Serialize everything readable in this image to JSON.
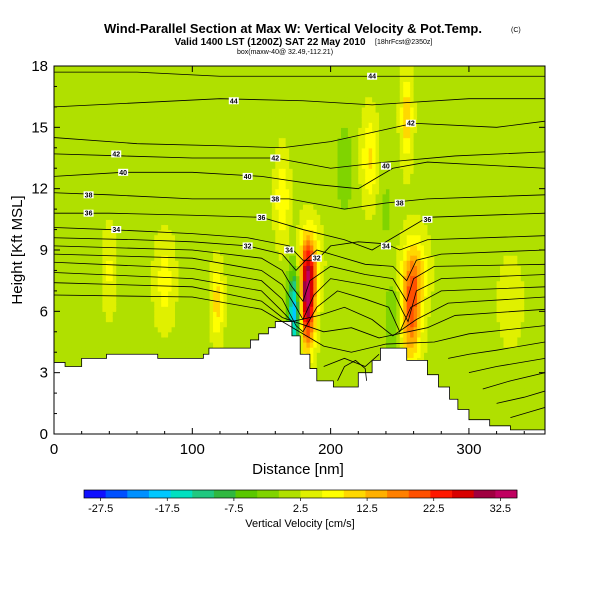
{
  "chart_data": {
    "type": "heatmap",
    "title": "Wind-Parallel Section at Max W: Vertical Velocity & Pot.Temp.",
    "title_mark": "(C)",
    "subtitle": "Valid 1400 LST (1200Z) SAT 22 May 2010",
    "subtitle_extra": "[18hrFcst@2350z]",
    "subtitle_small": "box(maxw-40@ 32.49,-112.21)",
    "xlabel": "Distance [nm]",
    "ylabel": "Height [Kft MSL]",
    "xlim": [
      0,
      355
    ],
    "ylim": [
      0,
      18
    ],
    "x_ticks": [
      0,
      100,
      200,
      300
    ],
    "y_ticks": [
      0,
      3,
      6,
      9,
      12,
      15,
      18
    ],
    "colorbar": {
      "title": "Vertical Velocity [cm/s]",
      "min": -30,
      "max": 35,
      "tick_labels": [
        "-27.5",
        "-17.5",
        "-7.5",
        "2.5",
        "12.5",
        "22.5",
        "32.5"
      ],
      "tick_values": [
        -27.5,
        -17.5,
        -7.5,
        2.5,
        12.5,
        22.5,
        32.5
      ],
      "colors": [
        "#1010ff",
        "#0050ff",
        "#0090ff",
        "#00c8ff",
        "#00e0c0",
        "#20c880",
        "#30b840",
        "#5ac800",
        "#80d400",
        "#b0e000",
        "#e0f000",
        "#ffff00",
        "#ffd800",
        "#ffb000",
        "#ff8000",
        "#ff5000",
        "#ff1800",
        "#d80000",
        "#a00040",
        "#c00060"
      ]
    },
    "background_value": 1.5,
    "terrain": [
      [
        0,
        3.5
      ],
      [
        8,
        3.5
      ],
      [
        8,
        3.3
      ],
      [
        20,
        3.3
      ],
      [
        20,
        3.7
      ],
      [
        38,
        3.7
      ],
      [
        38,
        3.9
      ],
      [
        75,
        3.9
      ],
      [
        75,
        3.7
      ],
      [
        108,
        3.7
      ],
      [
        108,
        3.9
      ],
      [
        112,
        3.9
      ],
      [
        112,
        4.2
      ],
      [
        142,
        4.2
      ],
      [
        142,
        4.6
      ],
      [
        148,
        4.6
      ],
      [
        148,
        4.9
      ],
      [
        155,
        4.9
      ],
      [
        155,
        5.2
      ],
      [
        160,
        5.2
      ],
      [
        160,
        5.5
      ],
      [
        172,
        5.5
      ],
      [
        172,
        4.8
      ],
      [
        178,
        4.8
      ],
      [
        178,
        3.9
      ],
      [
        185,
        3.9
      ],
      [
        185,
        3.2
      ],
      [
        190,
        3.2
      ],
      [
        190,
        2.6
      ],
      [
        202,
        2.6
      ],
      [
        202,
        2.3
      ],
      [
        220,
        2.3
      ],
      [
        220,
        3.0
      ],
      [
        230,
        3.0
      ],
      [
        230,
        3.6
      ],
      [
        236,
        3.6
      ],
      [
        236,
        4.2
      ],
      [
        255,
        4.2
      ],
      [
        255,
        3.6
      ],
      [
        270,
        3.6
      ],
      [
        270,
        2.9
      ],
      [
        278,
        2.9
      ],
      [
        278,
        2.3
      ],
      [
        286,
        2.3
      ],
      [
        286,
        1.7
      ],
      [
        292,
        1.7
      ],
      [
        292,
        1.2
      ],
      [
        300,
        1.2
      ],
      [
        300,
        0.7
      ],
      [
        315,
        0.7
      ],
      [
        315,
        0.4
      ],
      [
        330,
        0.4
      ],
      [
        330,
        0.2
      ],
      [
        355,
        0.2
      ]
    ],
    "velocity_features": [
      {
        "name": "updraft-main",
        "x": 183,
        "z": 6.5,
        "sx": 4,
        "sz": 1.6,
        "value": 30
      },
      {
        "name": "updraft-main-upper",
        "x": 185,
        "z": 8.5,
        "sx": 5,
        "sz": 1.2,
        "value": 12
      },
      {
        "name": "downdraft-main",
        "x": 174,
        "z": 6.0,
        "sx": 3.5,
        "sz": 1.5,
        "value": -22
      },
      {
        "name": "updraft-second",
        "x": 258,
        "z": 6.0,
        "sx": 5,
        "sz": 1.8,
        "value": 18
      },
      {
        "name": "updraft-second-upper",
        "x": 262,
        "z": 8.0,
        "sx": 6,
        "sz": 1.2,
        "value": 8
      },
      {
        "name": "downdraft-second",
        "x": 245,
        "z": 5.5,
        "sx": 4,
        "sz": 1.4,
        "value": -6
      },
      {
        "name": "updraft-west",
        "x": 118,
        "z": 6.5,
        "sx": 3,
        "sz": 1.2,
        "value": 10
      },
      {
        "name": "updraft-west-2",
        "x": 80,
        "z": 7.5,
        "sx": 5,
        "sz": 1.5,
        "value": 6
      },
      {
        "name": "updraft-west-3",
        "x": 40,
        "z": 8.0,
        "sx": 3,
        "sz": 1.5,
        "value": 5
      },
      {
        "name": "updraft-upper-1",
        "x": 165,
        "z": 11.5,
        "sx": 3.5,
        "sz": 1.5,
        "value": 8
      },
      {
        "name": "updraft-upper-2",
        "x": 228,
        "z": 13.5,
        "sx": 4,
        "sz": 1.5,
        "value": 8
      },
      {
        "name": "updraft-upper-3",
        "x": 255,
        "z": 15.5,
        "sx": 3,
        "sz": 1.5,
        "value": 10
      },
      {
        "name": "updraft-lower-2",
        "x": 330,
        "z": 6.5,
        "sx": 6,
        "sz": 1.5,
        "value": 3.5
      },
      {
        "name": "downdraft-upper-1",
        "x": 210,
        "z": 13,
        "sx": 5,
        "sz": 2,
        "value": -4
      },
      {
        "name": "downdraft-upper-2",
        "x": 240,
        "z": 11,
        "sx": 3,
        "sz": 1.5,
        "value": -3
      }
    ],
    "contours": [
      {
        "label": "44",
        "points": [
          [
            0,
            17.7
          ],
          [
            60,
            17.7
          ],
          [
            120,
            17.5
          ],
          [
            200,
            17.5
          ],
          [
            250,
            17.5
          ],
          [
            355,
            17.5
          ]
        ],
        "label_at": [
          [
            230,
            17.5
          ]
        ]
      },
      {
        "label": "44",
        "points": [
          [
            0,
            16.0
          ],
          [
            60,
            16.2
          ],
          [
            120,
            16.4
          ],
          [
            180,
            16.3
          ],
          [
            230,
            16.1
          ],
          [
            300,
            16.4
          ],
          [
            355,
            16.4
          ]
        ],
        "label_at": [
          [
            130,
            16.3
          ]
        ]
      },
      {
        "label": "42",
        "points": [
          [
            0,
            14.5
          ],
          [
            60,
            14.2
          ],
          [
            120,
            14.1
          ],
          [
            165,
            14.0
          ],
          [
            200,
            14.3
          ],
          [
            260,
            15.2
          ],
          [
            320,
            15.0
          ],
          [
            355,
            15.3
          ]
        ],
        "label_at": [
          [
            258,
            15.2
          ]
        ]
      },
      {
        "label": "42",
        "points": [
          [
            0,
            13.7
          ],
          [
            50,
            13.6
          ],
          [
            100,
            13.5
          ],
          [
            160,
            13.5
          ],
          [
            200,
            13.0
          ],
          [
            240,
            13.3
          ],
          [
            290,
            13.6
          ],
          [
            355,
            13.8
          ]
        ],
        "label_at": [
          [
            45,
            13.7
          ],
          [
            160,
            13.5
          ]
        ]
      },
      {
        "label": "40",
        "points": [
          [
            0,
            12.6
          ],
          [
            50,
            12.8
          ],
          [
            100,
            12.8
          ],
          [
            150,
            12.6
          ],
          [
            190,
            12.2
          ],
          [
            220,
            12.0
          ],
          [
            245,
            13.0
          ],
          [
            270,
            13.3
          ],
          [
            355,
            13.0
          ]
        ],
        "label_at": [
          [
            50,
            12.8
          ],
          [
            140,
            12.6
          ],
          [
            240,
            13.1
          ]
        ]
      },
      {
        "label": "38",
        "points": [
          [
            0,
            11.8
          ],
          [
            40,
            11.7
          ],
          [
            100,
            11.5
          ],
          [
            150,
            11.5
          ],
          [
            170,
            11.5
          ],
          [
            210,
            11.0
          ],
          [
            240,
            11.3
          ],
          [
            270,
            11.5
          ],
          [
            355,
            11.7
          ]
        ],
        "label_at": [
          [
            25,
            11.7
          ],
          [
            160,
            11.5
          ],
          [
            250,
            11.3
          ]
        ]
      },
      {
        "label": "36",
        "points": [
          [
            0,
            10.8
          ],
          [
            40,
            10.8
          ],
          [
            100,
            10.7
          ],
          [
            150,
            10.6
          ],
          [
            180,
            10.0
          ],
          [
            210,
            9.5
          ],
          [
            230,
            9.0
          ],
          [
            250,
            9.8
          ],
          [
            270,
            10.6
          ],
          [
            355,
            10.8
          ]
        ],
        "label_at": [
          [
            25,
            10.8
          ],
          [
            150,
            10.6
          ],
          [
            270,
            10.5
          ]
        ]
      },
      {
        "label": "34",
        "points": [
          [
            0,
            10.1
          ],
          [
            40,
            10.0
          ],
          [
            100,
            9.8
          ],
          [
            140,
            9.6
          ],
          [
            170,
            9.2
          ],
          [
            180,
            8.5
          ],
          [
            190,
            8.5
          ],
          [
            200,
            9.2
          ],
          [
            220,
            9.4
          ],
          [
            240,
            9.3
          ],
          [
            250,
            9.0
          ],
          [
            270,
            9.5
          ],
          [
            355,
            9.7
          ]
        ],
        "label_at": [
          [
            45,
            10.0
          ],
          [
            170,
            9.0
          ],
          [
            240,
            9.2
          ]
        ]
      },
      {
        "label": "32",
        "points": [
          [
            0,
            9.6
          ],
          [
            60,
            9.5
          ],
          [
            100,
            9.4
          ],
          [
            140,
            9.2
          ],
          [
            165,
            8.8
          ],
          [
            175,
            8.0
          ],
          [
            182,
            8.5
          ],
          [
            190,
            9.0
          ],
          [
            205,
            8.7
          ],
          [
            225,
            8.3
          ],
          [
            245,
            8.2
          ],
          [
            255,
            7.5
          ],
          [
            262,
            8.5
          ],
          [
            280,
            8.8
          ],
          [
            355,
            9.0
          ]
        ],
        "label_at": [
          [
            140,
            9.2
          ],
          [
            190,
            8.6
          ]
        ]
      },
      {
        "label": "",
        "points": [
          [
            0,
            9.2
          ],
          [
            100,
            9.0
          ],
          [
            150,
            8.6
          ],
          [
            165,
            8.0
          ],
          [
            172,
            7.2
          ],
          [
            180,
            6.5
          ],
          [
            185,
            7.5
          ],
          [
            200,
            8.2
          ],
          [
            225,
            7.8
          ],
          [
            245,
            7.6
          ],
          [
            255,
            6.5
          ],
          [
            260,
            7.6
          ],
          [
            275,
            8.2
          ],
          [
            355,
            8.3
          ]
        ],
        "label_at": []
      },
      {
        "label": "",
        "points": [
          [
            0,
            8.8
          ],
          [
            100,
            8.6
          ],
          [
            150,
            8.0
          ],
          [
            165,
            7.3
          ],
          [
            175,
            6.2
          ],
          [
            180,
            5.6
          ],
          [
            188,
            6.8
          ],
          [
            200,
            7.6
          ],
          [
            225,
            7.3
          ],
          [
            245,
            7.0
          ],
          [
            252,
            6.0
          ],
          [
            256,
            5.5
          ],
          [
            262,
            7.0
          ],
          [
            280,
            7.6
          ],
          [
            355,
            7.8
          ]
        ],
        "label_at": []
      },
      {
        "label": "",
        "points": [
          [
            0,
            8.4
          ],
          [
            100,
            8.1
          ],
          [
            150,
            7.5
          ],
          [
            165,
            6.6
          ],
          [
            175,
            5.3
          ],
          [
            180,
            5.0
          ],
          [
            190,
            6.2
          ],
          [
            205,
            7.0
          ],
          [
            225,
            6.6
          ],
          [
            242,
            6.2
          ],
          [
            250,
            5.0
          ],
          [
            258,
            6.2
          ],
          [
            280,
            7.0
          ],
          [
            355,
            7.2
          ]
        ],
        "label_at": []
      },
      {
        "label": "",
        "points": [
          [
            0,
            7.9
          ],
          [
            100,
            7.6
          ],
          [
            150,
            7.0
          ],
          [
            165,
            6.0
          ],
          [
            172,
            5.5
          ],
          [
            192,
            5.8
          ],
          [
            210,
            6.2
          ],
          [
            230,
            5.6
          ],
          [
            245,
            4.8
          ],
          [
            262,
            5.6
          ],
          [
            285,
            6.4
          ],
          [
            355,
            6.7
          ]
        ],
        "label_at": []
      },
      {
        "label": "",
        "points": [
          [
            0,
            7.4
          ],
          [
            100,
            7.2
          ],
          [
            150,
            6.5
          ],
          [
            165,
            5.7
          ],
          [
            195,
            5.0
          ],
          [
            215,
            5.2
          ],
          [
            235,
            4.7
          ],
          [
            270,
            5.2
          ],
          [
            290,
            5.8
          ],
          [
            355,
            6.1
          ]
        ],
        "label_at": []
      },
      {
        "label": "",
        "points": [
          [
            0,
            6.8
          ],
          [
            100,
            6.7
          ],
          [
            150,
            6.1
          ],
          [
            195,
            4.3
          ],
          [
            215,
            4.0
          ],
          [
            240,
            4.4
          ],
          [
            275,
            4.5
          ],
          [
            300,
            4.9
          ],
          [
            355,
            5.3
          ]
        ],
        "label_at": []
      },
      {
        "label": "",
        "points": [
          [
            195,
            3.3
          ],
          [
            210,
            3.7
          ],
          [
            225,
            3.3
          ],
          [
            235,
            3.9
          ]
        ],
        "label_at": []
      },
      {
        "label": "",
        "points": [
          [
            205,
            2.6
          ],
          [
            210,
            3.3
          ],
          [
            218,
            3.6
          ],
          [
            225,
            3.2
          ],
          [
            226,
            2.6
          ]
        ],
        "label_at": []
      },
      {
        "label": "",
        "points": [
          [
            285,
            3.7
          ],
          [
            300,
            3.9
          ],
          [
            320,
            4.1
          ],
          [
            355,
            4.5
          ]
        ],
        "label_at": []
      },
      {
        "label": "",
        "points": [
          [
            300,
            3.0
          ],
          [
            320,
            3.3
          ],
          [
            355,
            3.7
          ]
        ],
        "label_at": []
      },
      {
        "label": "",
        "points": [
          [
            310,
            2.2
          ],
          [
            330,
            2.6
          ],
          [
            355,
            3.0
          ]
        ],
        "label_at": []
      },
      {
        "label": "",
        "points": [
          [
            320,
            1.5
          ],
          [
            340,
            1.8
          ],
          [
            355,
            2.1
          ]
        ],
        "label_at": []
      },
      {
        "label": "",
        "points": [
          [
            330,
            0.8
          ],
          [
            345,
            1.1
          ],
          [
            355,
            1.3
          ]
        ],
        "label_at": []
      }
    ]
  }
}
